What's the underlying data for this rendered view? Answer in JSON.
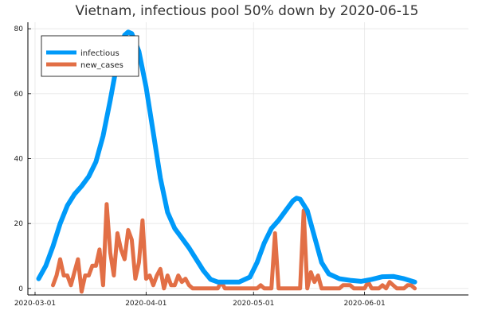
{
  "chart_data": {
    "type": "line",
    "title": "Vietnam, infectious pool 50% down by 2020-06-15",
    "xlabel": "",
    "ylabel": "",
    "x_axis": "date",
    "xlim": [
      "2020-02-28",
      "2020-06-30"
    ],
    "ylim": [
      -2,
      82
    ],
    "x_ticks": [
      "2020-03-01",
      "2020-04-01",
      "2020-05-01",
      "2020-06-01"
    ],
    "y_ticks": [
      0,
      20,
      40,
      60,
      80
    ],
    "grid": true,
    "legend_position": "top-left",
    "series": [
      {
        "name": "infectious",
        "color": "#009af9",
        "points": [
          [
            "2020-03-02",
            3
          ],
          [
            "2020-03-04",
            7
          ],
          [
            "2020-03-06",
            13
          ],
          [
            "2020-03-08",
            20
          ],
          [
            "2020-03-10",
            25.5
          ],
          [
            "2020-03-12",
            29
          ],
          [
            "2020-03-14",
            31.5
          ],
          [
            "2020-03-16",
            34.5
          ],
          [
            "2020-03-18",
            39
          ],
          [
            "2020-03-20",
            47
          ],
          [
            "2020-03-22",
            58
          ],
          [
            "2020-03-24",
            70
          ],
          [
            "2020-03-26",
            78
          ],
          [
            "2020-03-27",
            79
          ],
          [
            "2020-03-28",
            78.5
          ],
          [
            "2020-03-30",
            73
          ],
          [
            "2020-04-01",
            62
          ],
          [
            "2020-04-03",
            48
          ],
          [
            "2020-04-05",
            34
          ],
          [
            "2020-04-07",
            23.5
          ],
          [
            "2020-04-09",
            18.5
          ],
          [
            "2020-04-11",
            15.5
          ],
          [
            "2020-04-13",
            12.5
          ],
          [
            "2020-04-15",
            9
          ],
          [
            "2020-04-17",
            5.5
          ],
          [
            "2020-04-19",
            2.8
          ],
          [
            "2020-04-21",
            2
          ],
          [
            "2020-04-24",
            2
          ],
          [
            "2020-04-27",
            2
          ],
          [
            "2020-04-30",
            3.5
          ],
          [
            "2020-05-02",
            8
          ],
          [
            "2020-05-04",
            14
          ],
          [
            "2020-05-06",
            18.5
          ],
          [
            "2020-05-08",
            21
          ],
          [
            "2020-05-10",
            24
          ],
          [
            "2020-05-12",
            27
          ],
          [
            "2020-05-13",
            27.8
          ],
          [
            "2020-05-14",
            27.5
          ],
          [
            "2020-05-16",
            24
          ],
          [
            "2020-05-18",
            16
          ],
          [
            "2020-05-20",
            8
          ],
          [
            "2020-05-22",
            4.5
          ],
          [
            "2020-05-25",
            3
          ],
          [
            "2020-05-28",
            2.5
          ],
          [
            "2020-05-31",
            2.2
          ],
          [
            "2020-06-03",
            2.8
          ],
          [
            "2020-06-06",
            3.6
          ],
          [
            "2020-06-09",
            3.7
          ],
          [
            "2020-06-12",
            3
          ],
          [
            "2020-06-15",
            2
          ]
        ]
      },
      {
        "name": "new_cases",
        "color": "#e26f46",
        "points": [
          [
            "2020-03-06",
            1
          ],
          [
            "2020-03-07",
            4
          ],
          [
            "2020-03-08",
            9
          ],
          [
            "2020-03-09",
            4
          ],
          [
            "2020-03-10",
            4
          ],
          [
            "2020-03-11",
            1
          ],
          [
            "2020-03-12",
            5
          ],
          [
            "2020-03-13",
            9
          ],
          [
            "2020-03-14",
            -1
          ],
          [
            "2020-03-15",
            4
          ],
          [
            "2020-03-16",
            4
          ],
          [
            "2020-03-17",
            7
          ],
          [
            "2020-03-18",
            7
          ],
          [
            "2020-03-19",
            12
          ],
          [
            "2020-03-20",
            1
          ],
          [
            "2020-03-21",
            26
          ],
          [
            "2020-03-22",
            11
          ],
          [
            "2020-03-23",
            4
          ],
          [
            "2020-03-24",
            17
          ],
          [
            "2020-03-25",
            12
          ],
          [
            "2020-03-26",
            9
          ],
          [
            "2020-03-27",
            18
          ],
          [
            "2020-03-28",
            15
          ],
          [
            "2020-03-29",
            3
          ],
          [
            "2020-03-30",
            8
          ],
          [
            "2020-03-31",
            21
          ],
          [
            "2020-04-01",
            3
          ],
          [
            "2020-04-02",
            4
          ],
          [
            "2020-04-03",
            1
          ],
          [
            "2020-04-04",
            4
          ],
          [
            "2020-04-05",
            6
          ],
          [
            "2020-04-06",
            0
          ],
          [
            "2020-04-07",
            4
          ],
          [
            "2020-04-08",
            1
          ],
          [
            "2020-04-09",
            1
          ],
          [
            "2020-04-10",
            4
          ],
          [
            "2020-04-11",
            2
          ],
          [
            "2020-04-12",
            3
          ],
          [
            "2020-04-13",
            1
          ],
          [
            "2020-04-14",
            0
          ],
          [
            "2020-04-15",
            0
          ],
          [
            "2020-04-16",
            0
          ],
          [
            "2020-04-17",
            0
          ],
          [
            "2020-04-18",
            0
          ],
          [
            "2020-04-19",
            0
          ],
          [
            "2020-04-20",
            0
          ],
          [
            "2020-04-21",
            0
          ],
          [
            "2020-04-22",
            2
          ],
          [
            "2020-04-23",
            0
          ],
          [
            "2020-04-24",
            0
          ],
          [
            "2020-04-25",
            0
          ],
          [
            "2020-04-26",
            0
          ],
          [
            "2020-04-27",
            0
          ],
          [
            "2020-04-28",
            0
          ],
          [
            "2020-04-29",
            0
          ],
          [
            "2020-04-30",
            0
          ],
          [
            "2020-05-01",
            0
          ],
          [
            "2020-05-02",
            0
          ],
          [
            "2020-05-03",
            1
          ],
          [
            "2020-05-04",
            0
          ],
          [
            "2020-05-05",
            0
          ],
          [
            "2020-05-06",
            0
          ],
          [
            "2020-05-07",
            17
          ],
          [
            "2020-05-08",
            0
          ],
          [
            "2020-05-09",
            0
          ],
          [
            "2020-05-10",
            0
          ],
          [
            "2020-05-11",
            0
          ],
          [
            "2020-05-12",
            0
          ],
          [
            "2020-05-13",
            0
          ],
          [
            "2020-05-14",
            0
          ],
          [
            "2020-05-15",
            24
          ],
          [
            "2020-05-16",
            0
          ],
          [
            "2020-05-17",
            5
          ],
          [
            "2020-05-18",
            2
          ],
          [
            "2020-05-19",
            4
          ],
          [
            "2020-05-20",
            0
          ],
          [
            "2020-05-21",
            0
          ],
          [
            "2020-05-22",
            0
          ],
          [
            "2020-05-23",
            0
          ],
          [
            "2020-05-24",
            0
          ],
          [
            "2020-05-25",
            0
          ],
          [
            "2020-05-26",
            1
          ],
          [
            "2020-05-27",
            1
          ],
          [
            "2020-05-28",
            1
          ],
          [
            "2020-05-29",
            0
          ],
          [
            "2020-05-30",
            0
          ],
          [
            "2020-05-31",
            0
          ],
          [
            "2020-06-01",
            0
          ],
          [
            "2020-06-02",
            2
          ],
          [
            "2020-06-03",
            0
          ],
          [
            "2020-06-04",
            0
          ],
          [
            "2020-06-05",
            0
          ],
          [
            "2020-06-06",
            1
          ],
          [
            "2020-06-07",
            0
          ],
          [
            "2020-06-08",
            2
          ],
          [
            "2020-06-09",
            1
          ],
          [
            "2020-06-10",
            0
          ],
          [
            "2020-06-11",
            0
          ],
          [
            "2020-06-12",
            0
          ],
          [
            "2020-06-13",
            1
          ],
          [
            "2020-06-14",
            1
          ],
          [
            "2020-06-15",
            0
          ]
        ]
      }
    ]
  }
}
